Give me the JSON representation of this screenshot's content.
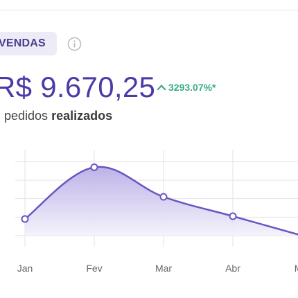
{
  "header": {
    "badge_label": "VENDAS",
    "total_value": "R$ 9.670,25",
    "growth_text": "3293.07%*",
    "subtitle_count": "",
    "subtitle_text": "pedidos",
    "subtitle_strong": "realizados"
  },
  "colors": {
    "line": "#6a55c2",
    "area_top": "#b9aee6",
    "area_bottom": "#f3f1fb",
    "growth": "#3bab88",
    "grid": "#e3e3e8"
  },
  "icons": {
    "info": "info-icon",
    "growth": "chevron-up-icon"
  },
  "chart_data": {
    "type": "area",
    "categories": [
      "Jan",
      "Fev",
      "Mar",
      "Abr",
      "Mai"
    ],
    "values": [
      0.9,
      3.7,
      2.1,
      1.05,
      0
    ],
    "ylim": [
      0,
      4.5
    ],
    "grid": true,
    "title": "",
    "xlabel": "",
    "ylabel": ""
  }
}
